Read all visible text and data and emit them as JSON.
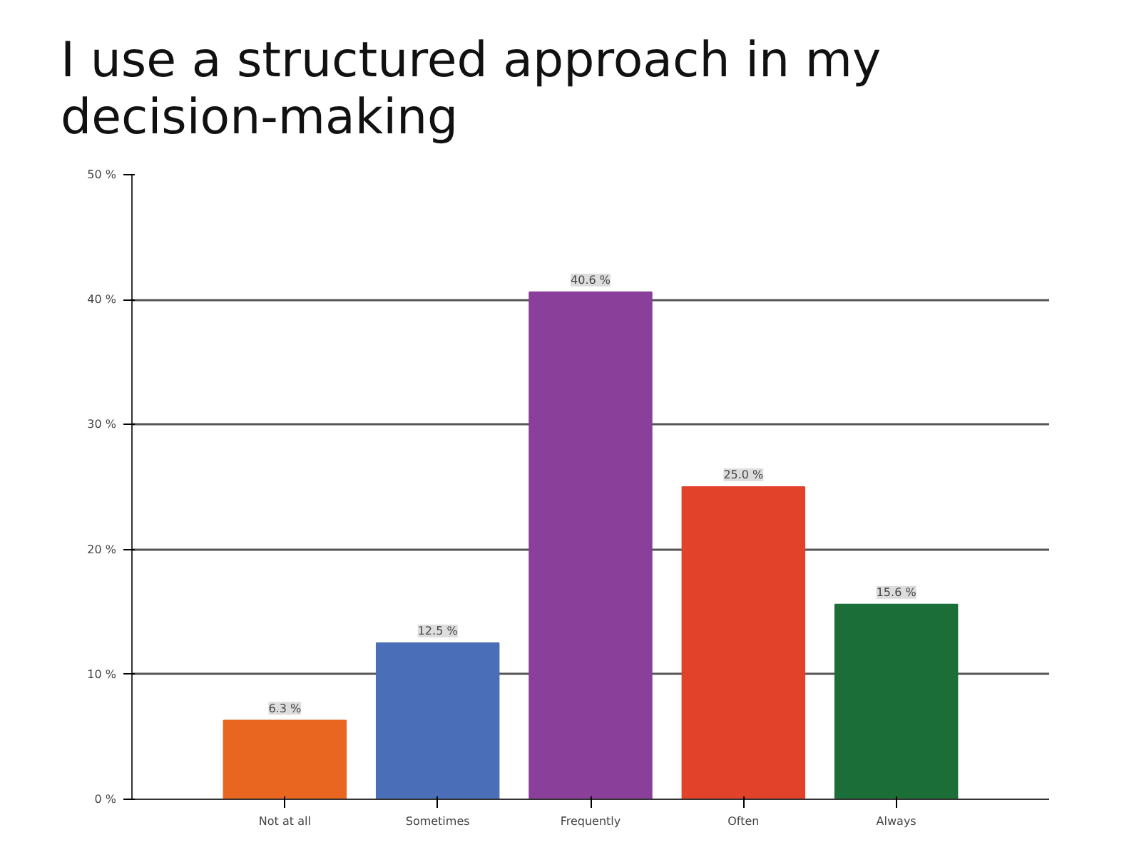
{
  "chart_data": {
    "type": "bar",
    "title": "I use a structured approach in my\ndecision-making",
    "categories": [
      "Not at all",
      "Sometimes",
      "Frequently",
      "Often",
      "Always"
    ],
    "values": [
      6.3,
      12.5,
      40.6,
      25.0,
      15.6
    ],
    "colors": [
      "#e8661f",
      "#4a6fb8",
      "#8a3f9a",
      "#e2412a",
      "#1c6e38"
    ],
    "value_labels": [
      "6.3 %",
      "12.5 %",
      "40.6 %",
      "25.0 %",
      "15.6 %"
    ],
    "ylim": [
      0,
      50
    ],
    "yticks": [
      {
        "value": 0,
        "label": "0 %"
      },
      {
        "value": 10,
        "label": "10 %"
      },
      {
        "value": 20,
        "label": "20 %"
      },
      {
        "value": 30,
        "label": "30 %"
      },
      {
        "value": 40,
        "label": "40 %"
      },
      {
        "value": 50,
        "label": "50 %"
      }
    ],
    "grid": "y"
  }
}
